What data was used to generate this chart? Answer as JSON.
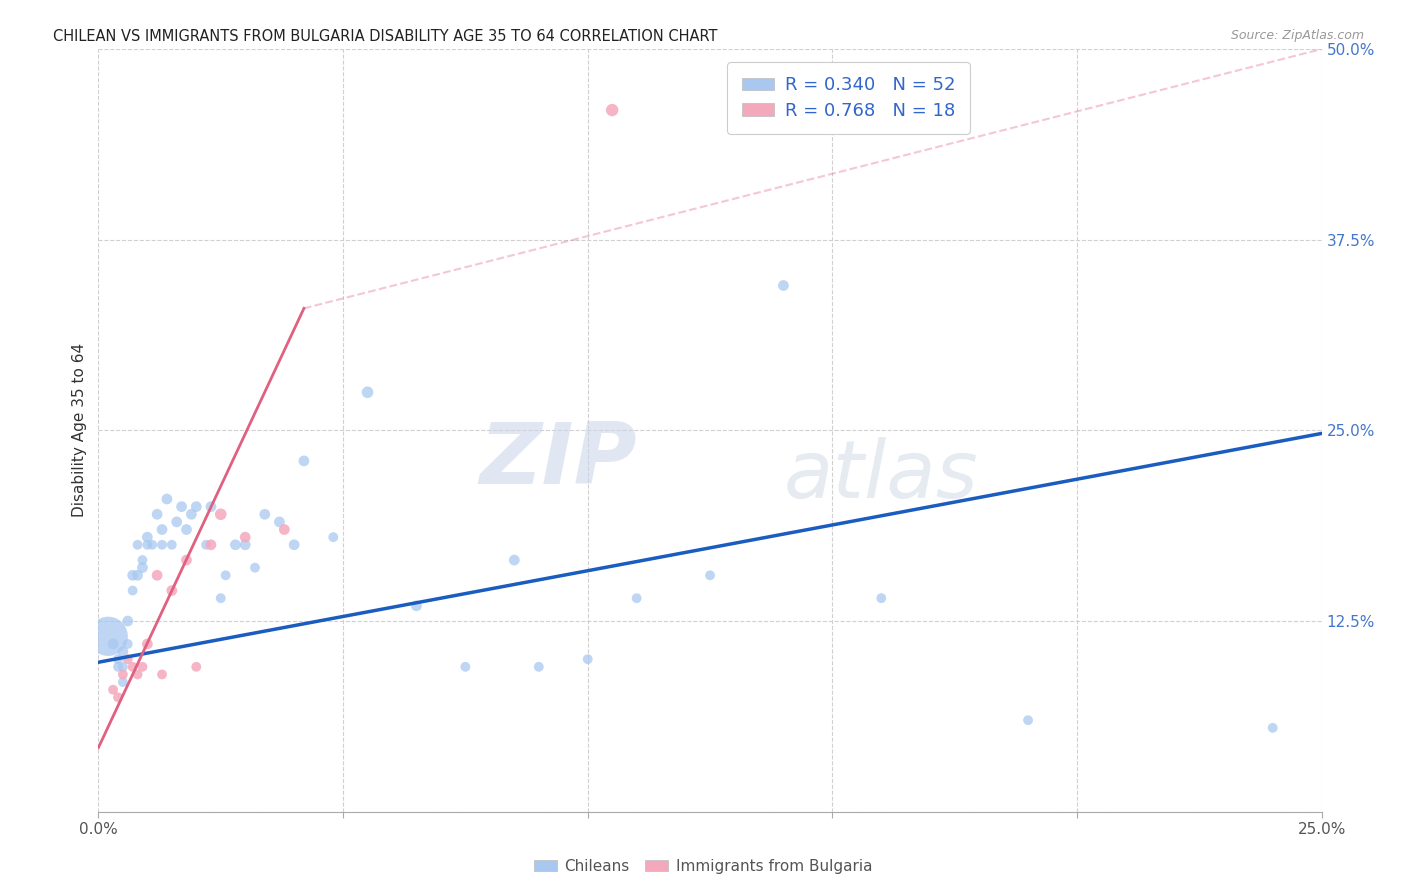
{
  "title": "CHILEAN VS IMMIGRANTS FROM BULGARIA DISABILITY AGE 35 TO 64 CORRELATION CHART",
  "source": "Source: ZipAtlas.com",
  "ylabel_label": "Disability Age 35 to 64",
  "xlim": [
    0.0,
    0.25
  ],
  "ylim": [
    0.0,
    0.5
  ],
  "xticks": [
    0.0,
    0.05,
    0.1,
    0.15,
    0.2,
    0.25
  ],
  "yticks": [
    0.0,
    0.125,
    0.25,
    0.375,
    0.5
  ],
  "xtick_labels": [
    "0.0%",
    "",
    "",
    "",
    "",
    "25.0%"
  ],
  "ytick_labels": [
    "",
    "12.5%",
    "25.0%",
    "37.5%",
    "50.0%"
  ],
  "chilean_R": 0.34,
  "chilean_N": 52,
  "bulgarian_R": 0.768,
  "bulgarian_N": 18,
  "legend_chilean_color": "#a8c8f0",
  "legend_bulgarian_color": "#f4a8bc",
  "chilean_line_color": "#1a5cbf",
  "bulgarian_line_color": "#e06080",
  "chilean_scatter_color": "#a8c8f0",
  "bulgarian_scatter_color": "#f4a8bc",
  "chilean_x": [
    0.002,
    0.003,
    0.004,
    0.004,
    0.005,
    0.005,
    0.005,
    0.006,
    0.006,
    0.007,
    0.007,
    0.008,
    0.008,
    0.009,
    0.009,
    0.01,
    0.01,
    0.011,
    0.012,
    0.013,
    0.013,
    0.014,
    0.015,
    0.016,
    0.017,
    0.018,
    0.019,
    0.02,
    0.022,
    0.023,
    0.025,
    0.026,
    0.028,
    0.03,
    0.032,
    0.034,
    0.037,
    0.04,
    0.042,
    0.048,
    0.055,
    0.065,
    0.075,
    0.085,
    0.09,
    0.1,
    0.11,
    0.125,
    0.14,
    0.16,
    0.19,
    0.24
  ],
  "chilean_y": [
    0.115,
    0.11,
    0.1,
    0.095,
    0.105,
    0.095,
    0.085,
    0.125,
    0.11,
    0.155,
    0.145,
    0.155,
    0.175,
    0.16,
    0.165,
    0.18,
    0.175,
    0.175,
    0.195,
    0.185,
    0.175,
    0.205,
    0.175,
    0.19,
    0.2,
    0.185,
    0.195,
    0.2,
    0.175,
    0.2,
    0.14,
    0.155,
    0.175,
    0.175,
    0.16,
    0.195,
    0.19,
    0.175,
    0.23,
    0.18,
    0.275,
    0.135,
    0.095,
    0.165,
    0.095,
    0.1,
    0.14,
    0.155,
    0.345,
    0.14,
    0.06,
    0.055
  ],
  "chilean_size": [
    800,
    60,
    50,
    50,
    60,
    50,
    50,
    60,
    50,
    60,
    50,
    60,
    50,
    60,
    50,
    60,
    50,
    50,
    60,
    60,
    50,
    60,
    50,
    60,
    60,
    60,
    60,
    60,
    50,
    60,
    50,
    50,
    60,
    60,
    50,
    60,
    60,
    60,
    60,
    50,
    70,
    60,
    50,
    60,
    50,
    50,
    50,
    50,
    60,
    50,
    50,
    50
  ],
  "bulgarian_x": [
    0.003,
    0.004,
    0.005,
    0.006,
    0.007,
    0.008,
    0.009,
    0.01,
    0.012,
    0.013,
    0.015,
    0.018,
    0.02,
    0.023,
    0.025,
    0.03,
    0.038,
    0.105
  ],
  "bulgarian_y": [
    0.08,
    0.075,
    0.09,
    0.1,
    0.095,
    0.09,
    0.095,
    0.11,
    0.155,
    0.09,
    0.145,
    0.165,
    0.095,
    0.175,
    0.195,
    0.18,
    0.185,
    0.46
  ],
  "bulgarian_size": [
    50,
    50,
    50,
    50,
    50,
    50,
    50,
    60,
    60,
    50,
    60,
    60,
    50,
    60,
    70,
    60,
    60,
    80
  ],
  "chilean_line_x0": 0.0,
  "chilean_line_y0": 0.098,
  "chilean_line_x1": 0.25,
  "chilean_line_y1": 0.248,
  "bulgarian_line_x0": 0.0,
  "bulgarian_line_y0": 0.042,
  "bulgarian_line_x1_solid": 0.042,
  "bulgarian_line_y1_solid": 0.33,
  "bulgarian_line_x1_dash": 0.25,
  "bulgarian_line_y1_dash": 0.5
}
